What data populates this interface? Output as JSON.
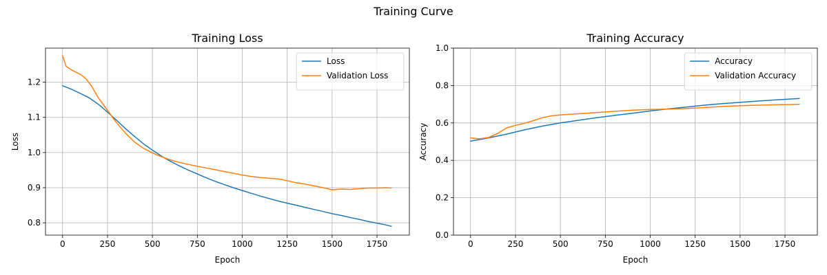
{
  "suptitle": "Training Curve",
  "chart_data": [
    {
      "type": "line",
      "title": "Training Loss",
      "xlabel": "Epoch",
      "ylabel": "Loss",
      "xlim": [
        -95,
        1930
      ],
      "ylim": [
        0.765,
        1.297
      ],
      "xticks": [
        0,
        250,
        500,
        750,
        1000,
        1250,
        1500,
        1750
      ],
      "yticks": [
        0.8,
        0.9,
        1.0,
        1.1,
        1.2
      ],
      "yticklabels": [
        "0.8",
        "0.9",
        "1.0",
        "1.1",
        "1.2"
      ],
      "grid": true,
      "legend_position": "top-right",
      "series": [
        {
          "name": "Loss",
          "color": "#1f77b4",
          "x": [
            0,
            50,
            100,
            150,
            200,
            250,
            300,
            350,
            400,
            450,
            500,
            550,
            600,
            650,
            700,
            750,
            800,
            850,
            900,
            950,
            1000,
            1050,
            1100,
            1150,
            1200,
            1250,
            1300,
            1350,
            1400,
            1450,
            1500,
            1550,
            1600,
            1650,
            1700,
            1750,
            1800,
            1830
          ],
          "values": [
            1.19,
            1.18,
            1.168,
            1.155,
            1.137,
            1.115,
            1.092,
            1.068,
            1.046,
            1.025,
            1.007,
            0.99,
            0.975,
            0.962,
            0.95,
            0.939,
            0.928,
            0.918,
            0.909,
            0.9,
            0.892,
            0.884,
            0.876,
            0.869,
            0.862,
            0.856,
            0.85,
            0.844,
            0.838,
            0.832,
            0.826,
            0.821,
            0.815,
            0.81,
            0.804,
            0.799,
            0.794,
            0.79
          ]
        },
        {
          "name": "Validation Loss",
          "color": "#ff7f0e",
          "x": [
            0,
            20,
            50,
            100,
            130,
            160,
            200,
            250,
            300,
            350,
            400,
            450,
            500,
            550,
            600,
            650,
            700,
            750,
            800,
            850,
            900,
            950,
            1000,
            1050,
            1100,
            1150,
            1200,
            1250,
            1300,
            1350,
            1400,
            1450,
            1500,
            1550,
            1600,
            1650,
            1700,
            1750,
            1800,
            1830
          ],
          "values": [
            1.275,
            1.245,
            1.235,
            1.222,
            1.21,
            1.19,
            1.155,
            1.12,
            1.085,
            1.055,
            1.03,
            1.012,
            0.999,
            0.988,
            0.979,
            0.972,
            0.966,
            0.961,
            0.956,
            0.951,
            0.946,
            0.941,
            0.936,
            0.932,
            0.929,
            0.927,
            0.925,
            0.92,
            0.914,
            0.91,
            0.905,
            0.9,
            0.894,
            0.896,
            0.895,
            0.897,
            0.899,
            0.899,
            0.9,
            0.899
          ]
        }
      ]
    },
    {
      "type": "line",
      "title": "Training Accuracy",
      "xlabel": "Epoch",
      "ylabel": "Accuracy",
      "xlim": [
        -95,
        1930
      ],
      "ylim": [
        0.0,
        1.0
      ],
      "xticks": [
        0,
        250,
        500,
        750,
        1000,
        1250,
        1500,
        1750
      ],
      "yticks": [
        0.0,
        0.2,
        0.4,
        0.6,
        0.8,
        1.0
      ],
      "yticklabels": [
        "0.0",
        "0.2",
        "0.4",
        "0.6",
        "0.8",
        "1.0"
      ],
      "grid": true,
      "legend_position": "top-right",
      "series": [
        {
          "name": "Accuracy",
          "color": "#1f77b4",
          "x": [
            0,
            100,
            200,
            300,
            400,
            500,
            600,
            700,
            800,
            900,
            1000,
            1100,
            1200,
            1300,
            1400,
            1500,
            1600,
            1700,
            1800,
            1830
          ],
          "values": [
            0.503,
            0.52,
            0.54,
            0.563,
            0.583,
            0.6,
            0.614,
            0.628,
            0.64,
            0.652,
            0.664,
            0.675,
            0.685,
            0.695,
            0.703,
            0.71,
            0.717,
            0.723,
            0.729,
            0.731
          ]
        },
        {
          "name": "Validation Accuracy",
          "color": "#ff7f0e",
          "x": [
            0,
            50,
            100,
            150,
            200,
            250,
            300,
            350,
            400,
            450,
            500,
            600,
            700,
            800,
            900,
            1000,
            1100,
            1200,
            1300,
            1400,
            1500,
            1600,
            1700,
            1800,
            1830
          ],
          "values": [
            0.52,
            0.515,
            0.522,
            0.543,
            0.573,
            0.587,
            0.598,
            0.612,
            0.628,
            0.638,
            0.643,
            0.649,
            0.655,
            0.662,
            0.668,
            0.672,
            0.674,
            0.677,
            0.682,
            0.688,
            0.692,
            0.695,
            0.697,
            0.699,
            0.7
          ]
        }
      ]
    }
  ]
}
